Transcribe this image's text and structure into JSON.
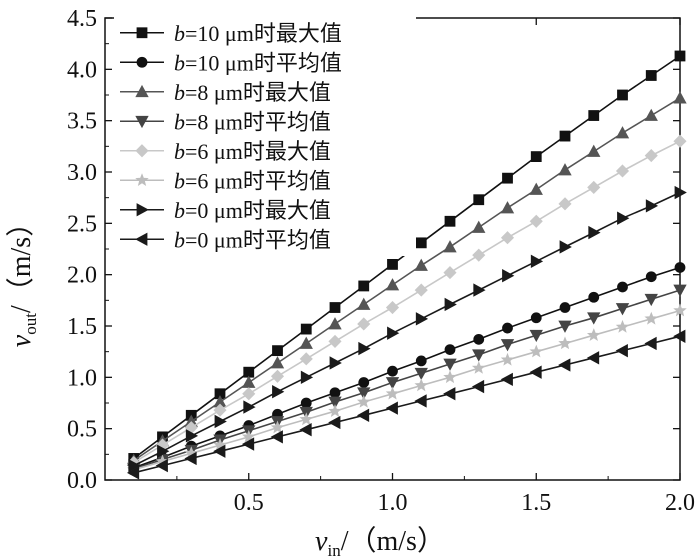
{
  "chart_data": {
    "type": "line",
    "x": [
      0.1,
      0.2,
      0.3,
      0.4,
      0.5,
      0.6,
      0.7,
      0.8,
      0.9,
      1.0,
      1.1,
      1.2,
      1.3,
      1.4,
      1.5,
      1.6,
      1.7,
      1.8,
      1.9,
      2.0
    ],
    "xlabel": {
      "var": "v",
      "sub": "in",
      "unit": "/（m/s）"
    },
    "ylabel": {
      "var": "v",
      "sub": "out",
      "unit": "/（m/s）"
    },
    "xlim": [
      0.0,
      2.0
    ],
    "ylim": [
      0.0,
      4.5
    ],
    "xticks": [
      "0.5",
      "1.0",
      "1.5",
      "2.0"
    ],
    "yticks": [
      "0.0",
      "0.5",
      "1.0",
      "1.5",
      "2.0",
      "2.5",
      "3.0",
      "3.5",
      "4.0",
      "4.5"
    ],
    "legend_position": "top-left",
    "series": [
      {
        "name": "b=10 μm时最大值",
        "name_var": "b",
        "name_rest": "=10 μm时最大值",
        "marker": "square",
        "color": "#111111",
        "values": [
          0.21,
          0.42,
          0.63,
          0.84,
          1.05,
          1.26,
          1.47,
          1.68,
          1.89,
          2.1,
          2.31,
          2.52,
          2.73,
          2.94,
          3.15,
          3.35,
          3.55,
          3.75,
          3.94,
          4.13
        ]
      },
      {
        "name": "b=10 μm时平均值",
        "name_var": "b",
        "name_rest": "=10 μm时平均值",
        "marker": "circle",
        "color": "#111111",
        "values": [
          0.12,
          0.22,
          0.33,
          0.43,
          0.53,
          0.64,
          0.75,
          0.85,
          0.95,
          1.06,
          1.16,
          1.27,
          1.37,
          1.48,
          1.58,
          1.68,
          1.78,
          1.88,
          1.98,
          2.07
        ]
      },
      {
        "name": "b=8 μm时最大值",
        "name_var": "b",
        "name_rest": "=8 μm时最大值",
        "marker": "triangle-up",
        "color": "#555555",
        "values": [
          0.19,
          0.38,
          0.57,
          0.76,
          0.95,
          1.14,
          1.33,
          1.52,
          1.71,
          1.9,
          2.09,
          2.27,
          2.46,
          2.65,
          2.83,
          3.02,
          3.2,
          3.38,
          3.55,
          3.72
        ]
      },
      {
        "name": "b=8 μm时平均值",
        "name_var": "b",
        "name_rest": "=8 μm时平均值",
        "marker": "triangle-down",
        "color": "#444444",
        "values": [
          0.11,
          0.2,
          0.29,
          0.39,
          0.48,
          0.57,
          0.66,
          0.76,
          0.85,
          0.95,
          1.04,
          1.13,
          1.22,
          1.32,
          1.41,
          1.5,
          1.58,
          1.67,
          1.76,
          1.85
        ]
      },
      {
        "name": "b=6 μm时最大值",
        "name_var": "b",
        "name_rest": "=6 μm时最大值",
        "marker": "diamond",
        "color": "#c8c8c8",
        "values": [
          0.17,
          0.34,
          0.51,
          0.68,
          0.84,
          1.01,
          1.18,
          1.35,
          1.52,
          1.68,
          1.85,
          2.02,
          2.19,
          2.36,
          2.52,
          2.69,
          2.85,
          3.01,
          3.16,
          3.3
        ]
      },
      {
        "name": "b=6 μm时平均值",
        "name_var": "b",
        "name_rest": "=6 μm时平均值",
        "marker": "star",
        "color": "#bdbdbd",
        "values": [
          0.1,
          0.18,
          0.26,
          0.34,
          0.42,
          0.51,
          0.59,
          0.67,
          0.76,
          0.84,
          0.92,
          1.0,
          1.09,
          1.17,
          1.25,
          1.33,
          1.41,
          1.49,
          1.57,
          1.65
        ]
      },
      {
        "name": "b=0 μm时最大值",
        "name_var": "b",
        "name_rest": "=0 μm时最大值",
        "marker": "triangle-right",
        "color": "#1a1a1a",
        "values": [
          0.14,
          0.28,
          0.43,
          0.57,
          0.71,
          0.86,
          1.0,
          1.14,
          1.28,
          1.43,
          1.57,
          1.71,
          1.85,
          1.99,
          2.13,
          2.27,
          2.41,
          2.55,
          2.67,
          2.8
        ]
      },
      {
        "name": "b=0 μm时平均值",
        "name_var": "b",
        "name_rest": "=0 μm时平均值",
        "marker": "triangle-left",
        "color": "#1a1a1a",
        "values": [
          0.07,
          0.14,
          0.21,
          0.28,
          0.35,
          0.42,
          0.49,
          0.56,
          0.63,
          0.7,
          0.77,
          0.84,
          0.91,
          0.98,
          1.05,
          1.12,
          1.19,
          1.26,
          1.33,
          1.4
        ]
      }
    ]
  }
}
